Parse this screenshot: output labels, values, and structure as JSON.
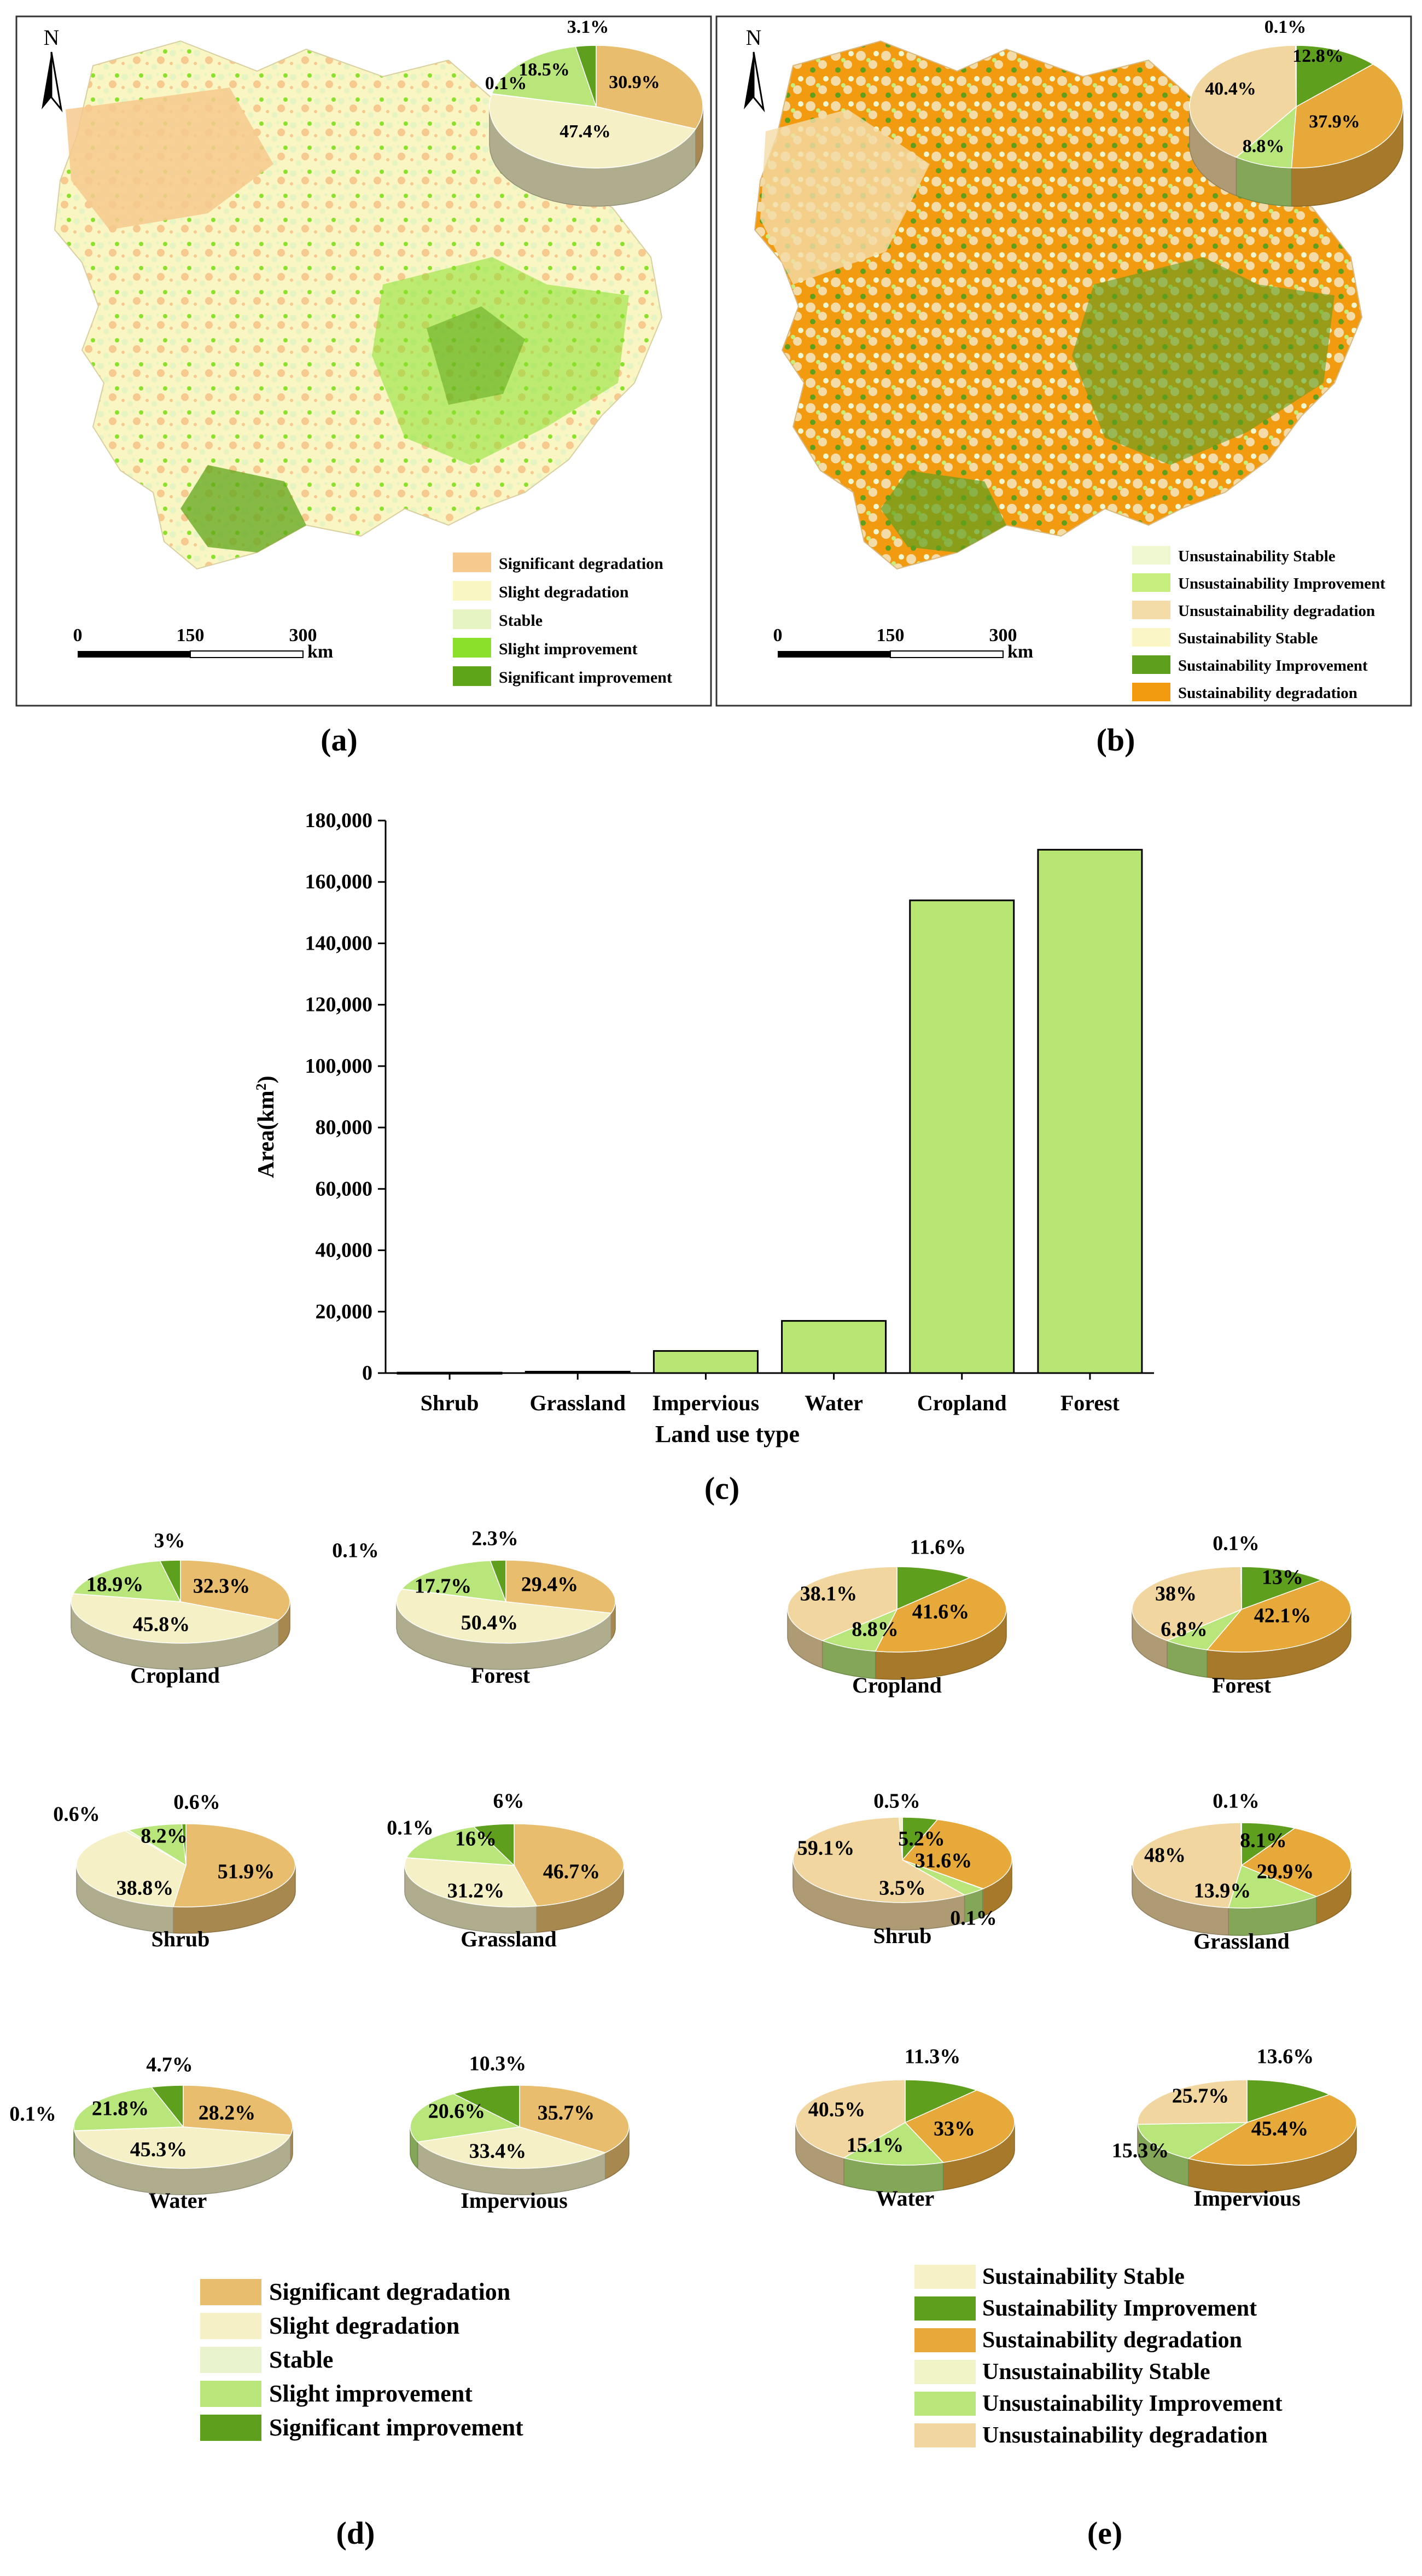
{
  "colors": {
    "sig_deg": "#F6C98E",
    "slight_deg": "#FAF6C3",
    "stable": "#E6F4C4",
    "slight_imp": "#8BE02C",
    "sig_imp": "#5FA51A",
    "pie_sig_deg": "#E8BD6E",
    "pie_slight_deg": "#F5F0C6",
    "pie_stable": "#E9F4CF",
    "pie_slight_imp": "#B8E67A",
    "pie_sig_imp": "#5E9F1E",
    "sus_stable": "#F7F2C6",
    "sus_imp": "#5E9F1E",
    "sus_deg": "#E6A93A",
    "unsus_stable": "#F0F4C7",
    "unsus_imp": "#B8E67A",
    "unsus_deg": "#F1D6A0",
    "map_b_uns_stable": "#EEF7CF",
    "map_b_uns_imp": "#C7EE7D",
    "map_b_uns_deg": "#F4DCA8",
    "map_b_sus_stable": "#FAF6C6",
    "map_b_sus_imp": "#5E9F1E",
    "map_b_sus_deg": "#F29A10",
    "bar_fill": "#B8E672"
  },
  "panel_a": {
    "label": "(a)",
    "north": "N",
    "scale": {
      "ticks": [
        "0",
        "150",
        "300"
      ],
      "unit": "km"
    },
    "legend": [
      "Significant degradation",
      "Slight degradation",
      "Stable",
      "Slight improvement",
      "Significant improvement"
    ],
    "pie": [
      {
        "label": "30.9%",
        "value": 30.9,
        "key": "pie_sig_deg"
      },
      {
        "label": "47.4%",
        "value": 47.4,
        "key": "pie_slight_deg"
      },
      {
        "label": "0.1%",
        "value": 0.1,
        "key": "pie_stable"
      },
      {
        "label": "18.5%",
        "value": 18.5,
        "key": "pie_slight_imp"
      },
      {
        "label": "3.1%",
        "value": 3.1,
        "key": "pie_sig_imp"
      }
    ]
  },
  "panel_b": {
    "label": "(b)",
    "north": "N",
    "scale": {
      "ticks": [
        "0",
        "150",
        "300"
      ],
      "unit": "km"
    },
    "legend": [
      "Unsustainability Stable",
      "Unsustainability Improvement",
      "Unsustainability degradation",
      "Sustainability Stable",
      "Sustainability Improvement",
      "Sustainability degradation"
    ],
    "pie": [
      {
        "label": "12.8%",
        "value": 12.8,
        "key": "sus_imp"
      },
      {
        "label": "37.9%",
        "value": 37.9,
        "key": "sus_deg"
      },
      {
        "label": "8.8%",
        "value": 8.8,
        "key": "unsus_imp"
      },
      {
        "label": "40.4%",
        "value": 40.4,
        "key": "unsus_deg"
      },
      {
        "label": "0.1%",
        "value": 0.1,
        "key": "sus_stable"
      }
    ]
  },
  "chart_data": {
    "type": "bar",
    "title": "",
    "categories": [
      "Shrub",
      "Grassland",
      "Impervious",
      "Water",
      "Cropland",
      "Forest"
    ],
    "values": [
      150,
      450,
      7200,
      17000,
      154000,
      170500
    ],
    "xlabel": "Land use type",
    "ylabel": "Area(km",
    "ylabel_sup": "2",
    "ylabel_close": ")",
    "ylim": [
      0,
      180000
    ],
    "yticks": [
      "0",
      "20,000",
      "40,000",
      "60,000",
      "80,000",
      "100,000",
      "120,000",
      "140,000",
      "160,000",
      "180,000"
    ],
    "panel_label": "(c)"
  },
  "panel_d": {
    "label": "(d)",
    "legend": [
      "Significant degradation",
      "Slight degradation",
      "Stable",
      "Slight improvement",
      "Significant improvement"
    ],
    "pies": [
      {
        "name": "Cropland",
        "slices": [
          {
            "label": "32.3%",
            "value": 32.3,
            "key": "pie_sig_deg"
          },
          {
            "label": "45.8%",
            "value": 45.8,
            "key": "pie_slight_deg"
          },
          {
            "label": "",
            "value": 0,
            "key": "pie_stable"
          },
          {
            "label": "18.9%",
            "value": 18.9,
            "key": "pie_slight_imp"
          },
          {
            "label": "3%",
            "value": 3.0,
            "key": "pie_sig_imp"
          }
        ]
      },
      {
        "name": "Forest",
        "slices": [
          {
            "label": "29.4%",
            "value": 29.4,
            "key": "pie_sig_deg"
          },
          {
            "label": "50.4%",
            "value": 50.4,
            "key": "pie_slight_deg"
          },
          {
            "label": "0.1%",
            "value": 0.1,
            "key": "pie_stable"
          },
          {
            "label": "17.7%",
            "value": 17.7,
            "key": "pie_slight_imp"
          },
          {
            "label": "2.3%",
            "value": 2.3,
            "key": "pie_sig_imp"
          }
        ]
      },
      {
        "name": "Shrub",
        "slices": [
          {
            "label": "51.9%",
            "value": 51.9,
            "key": "pie_sig_deg"
          },
          {
            "label": "38.8%",
            "value": 38.8,
            "key": "pie_slight_deg"
          },
          {
            "label": "0.6%",
            "value": 0.6,
            "key": "pie_stable"
          },
          {
            "label": "8.2%",
            "value": 8.2,
            "key": "pie_slight_imp"
          },
          {
            "label": "0.6%",
            "value": 0.6,
            "key": "pie_sig_imp"
          }
        ]
      },
      {
        "name": "Grassland",
        "slices": [
          {
            "label": "46.7%",
            "value": 46.7,
            "key": "pie_sig_deg"
          },
          {
            "label": "31.2%",
            "value": 31.2,
            "key": "pie_slight_deg"
          },
          {
            "label": "0.1%",
            "value": 0.1,
            "key": "pie_stable"
          },
          {
            "label": "16%",
            "value": 16.0,
            "key": "pie_slight_imp"
          },
          {
            "label": "6%",
            "value": 6.0,
            "key": "pie_sig_imp"
          }
        ]
      },
      {
        "name": "Water",
        "slices": [
          {
            "label": "28.2%",
            "value": 28.2,
            "key": "pie_sig_deg"
          },
          {
            "label": "45.3%",
            "value": 45.3,
            "key": "pie_slight_deg"
          },
          {
            "label": "0.1%",
            "value": 0.1,
            "key": "pie_stable"
          },
          {
            "label": "21.8%",
            "value": 21.8,
            "key": "pie_slight_imp"
          },
          {
            "label": "4.7%",
            "value": 4.7,
            "key": "pie_sig_imp"
          }
        ]
      },
      {
        "name": "Impervious",
        "slices": [
          {
            "label": "35.7%",
            "value": 35.7,
            "key": "pie_sig_deg"
          },
          {
            "label": "33.4%",
            "value": 33.4,
            "key": "pie_slight_deg"
          },
          {
            "label": "",
            "value": 0,
            "key": "pie_stable"
          },
          {
            "label": "20.6%",
            "value": 20.6,
            "key": "pie_slight_imp"
          },
          {
            "label": "10.3%",
            "value": 10.3,
            "key": "pie_sig_imp"
          }
        ]
      }
    ]
  },
  "panel_e": {
    "label": "(e)",
    "legend": [
      "Sustainability Stable",
      "Sustainability Improvement",
      "Sustainability degradation",
      "Unsustainability Stable",
      "Unsustainability Improvement",
      "Unsustainability degradation"
    ],
    "pies": [
      {
        "name": "Cropland",
        "slices": [
          {
            "label": "11.6%",
            "value": 11.6,
            "key": "sus_imp"
          },
          {
            "label": "41.6%",
            "value": 41.6,
            "key": "sus_deg"
          },
          {
            "label": "",
            "value": 0,
            "key": "sus_stable"
          },
          {
            "label": "8.8%",
            "value": 8.8,
            "key": "unsus_imp"
          },
          {
            "label": "38.1%",
            "value": 38.1,
            "key": "unsus_deg"
          }
        ]
      },
      {
        "name": "Forest",
        "slices": [
          {
            "label": "13%",
            "value": 13.0,
            "key": "sus_imp"
          },
          {
            "label": "42.1%",
            "value": 42.1,
            "key": "sus_deg"
          },
          {
            "label": "",
            "value": 0,
            "key": "sus_stable"
          },
          {
            "label": "6.8%",
            "value": 6.8,
            "key": "unsus_imp"
          },
          {
            "label": "38%",
            "value": 38.0,
            "key": "unsus_deg"
          },
          {
            "label": "0.1%",
            "value": 0.1,
            "key": "sus_stable"
          }
        ]
      },
      {
        "name": "Shrub",
        "slices": [
          {
            "label": "5.2%",
            "value": 5.2,
            "key": "sus_imp"
          },
          {
            "label": "31.6%",
            "value": 31.6,
            "key": "sus_deg"
          },
          {
            "label": "0.1%",
            "value": 0.1,
            "key": "sus_stable"
          },
          {
            "label": "3.5%",
            "value": 3.5,
            "key": "unsus_imp"
          },
          {
            "label": "59.1%",
            "value": 59.1,
            "key": "unsus_deg"
          },
          {
            "label": "0.5%",
            "value": 0.5,
            "key": "sus_stable"
          }
        ]
      },
      {
        "name": "Grassland",
        "slices": [
          {
            "label": "8.1%",
            "value": 8.1,
            "key": "sus_imp"
          },
          {
            "label": "29.9%",
            "value": 29.9,
            "key": "sus_deg"
          },
          {
            "label": "",
            "value": 0,
            "key": "sus_stable"
          },
          {
            "label": "13.9%",
            "value": 13.9,
            "key": "unsus_imp"
          },
          {
            "label": "48%",
            "value": 48.0,
            "key": "unsus_deg"
          },
          {
            "label": "0.1%",
            "value": 0.1,
            "key": "sus_stable"
          }
        ]
      },
      {
        "name": "Water",
        "slices": [
          {
            "label": "11.3%",
            "value": 11.3,
            "key": "sus_imp"
          },
          {
            "label": "33%",
            "value": 33.0,
            "key": "sus_deg"
          },
          {
            "label": "",
            "value": 0,
            "key": "sus_stable"
          },
          {
            "label": "15.1%",
            "value": 15.1,
            "key": "unsus_imp"
          },
          {
            "label": "40.5%",
            "value": 40.5,
            "key": "unsus_deg"
          }
        ]
      },
      {
        "name": "Impervious",
        "slices": [
          {
            "label": "13.6%",
            "value": 13.6,
            "key": "sus_imp"
          },
          {
            "label": "45.4%",
            "value": 45.4,
            "key": "sus_deg"
          },
          {
            "label": "",
            "value": 0,
            "key": "sus_stable"
          },
          {
            "label": "15.3%",
            "value": 15.3,
            "key": "unsus_imp"
          },
          {
            "label": "25.7%",
            "value": 25.7,
            "key": "unsus_deg"
          }
        ]
      }
    ]
  }
}
